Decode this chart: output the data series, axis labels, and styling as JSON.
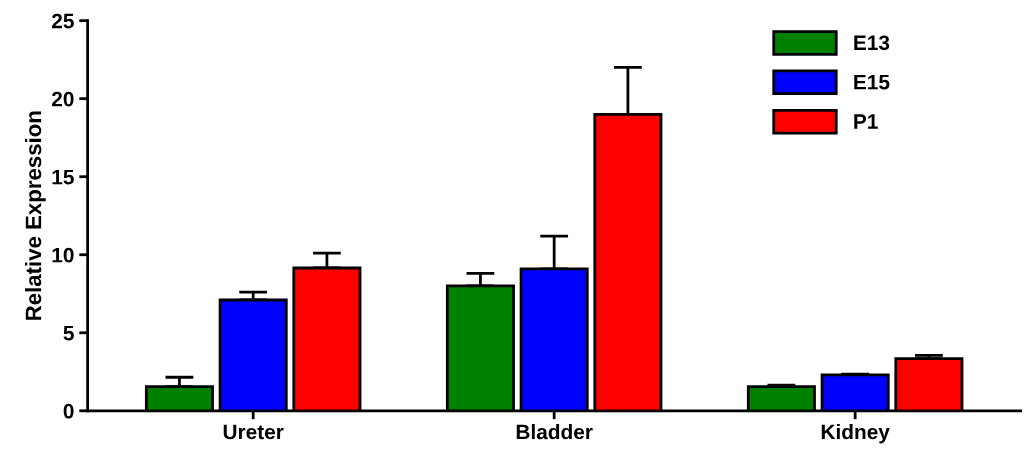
{
  "chart_data": {
    "type": "bar",
    "ylabel": "Relative Expression",
    "categories": [
      "Ureter",
      "Bladder",
      "Kidney"
    ],
    "series": [
      {
        "name": "E13",
        "color": "#008000",
        "values": [
          1.55,
          8.0,
          1.55
        ],
        "errors": [
          0.6,
          0.8,
          0.1
        ]
      },
      {
        "name": "E15",
        "color": "#0000ff",
        "values": [
          7.1,
          9.1,
          2.3
        ],
        "errors": [
          0.5,
          2.1,
          0.05
        ]
      },
      {
        "name": "P1",
        "color": "#ff0000",
        "values": [
          9.15,
          19.0,
          3.35
        ],
        "errors": [
          0.95,
          3.0,
          0.2
        ]
      }
    ],
    "ylim": [
      0,
      25
    ],
    "yticks": [
      0,
      5,
      10,
      15,
      20,
      25
    ],
    "grid": false,
    "legend": "top right"
  }
}
